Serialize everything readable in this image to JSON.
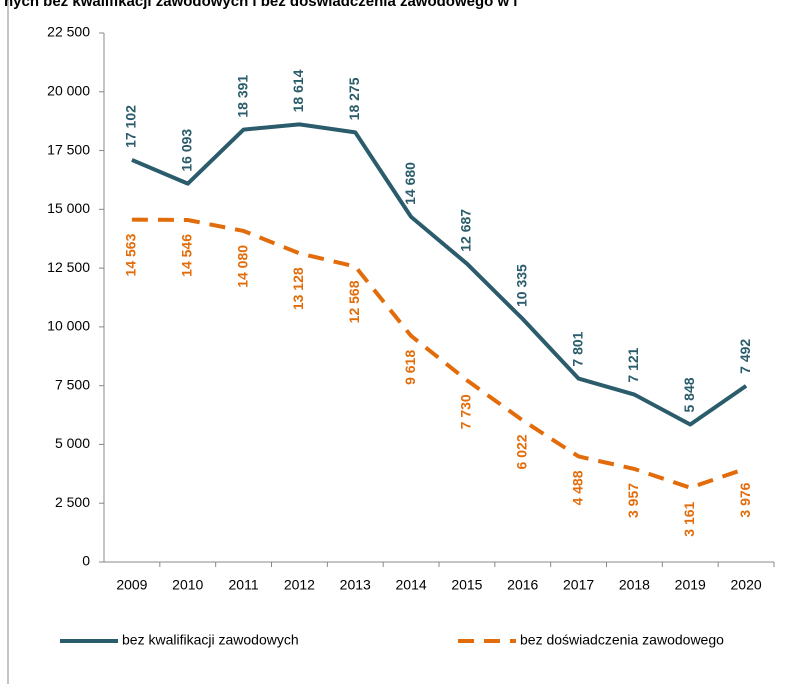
{
  "chart_data": {
    "type": "line",
    "title": "nych bez kwalifikacji zawodowych i bez doświadczenia zawodowego w l",
    "categories": [
      "2009",
      "2010",
      "2011",
      "2012",
      "2013",
      "2014",
      "2015",
      "2016",
      "2017",
      "2018",
      "2019",
      "2020"
    ],
    "series": [
      {
        "name": "bez kwalifikacji zawodowych",
        "color": "#2b5c6b",
        "dash": false,
        "values": [
          17102,
          16093,
          18391,
          18614,
          18275,
          14680,
          12687,
          10335,
          7801,
          7121,
          5848,
          7492
        ],
        "value_labels": [
          "17 102",
          "16 093",
          "18 391",
          "18 614",
          "18 275",
          "14 680",
          "12 687",
          "10 335",
          "7 801",
          "7 121",
          "5 848",
          "7 492"
        ]
      },
      {
        "name": "bez doświadczenia zawodowego",
        "color": "#e36c0a",
        "dash": true,
        "values": [
          14563,
          14546,
          14080,
          13128,
          12568,
          9618,
          7730,
          6022,
          4488,
          3957,
          3161,
          3976
        ],
        "value_labels": [
          "14 563",
          "14 546",
          "14 080",
          "13 128",
          "12 568",
          "9 618",
          "7 730",
          "6 022",
          "4 488",
          "3 957",
          "3 161",
          "3 976"
        ]
      }
    ],
    "ylim": [
      0,
      22500
    ],
    "yticks": [
      0,
      {
        "value": 2500,
        "label": "2 500"
      },
      {
        "value": 5000,
        "label": "5 000"
      },
      {
        "value": 7500,
        "label": "7 500"
      },
      {
        "value": 10000,
        "label": "10 000"
      },
      {
        "value": 12500,
        "label": "12 500"
      },
      {
        "value": 15000,
        "label": "15 000"
      },
      {
        "value": 17500,
        "label": "17 500"
      },
      {
        "value": 20000,
        "label": "20 000"
      },
      {
        "value": 22500,
        "label": "22 500"
      }
    ],
    "legend": "bottom"
  }
}
